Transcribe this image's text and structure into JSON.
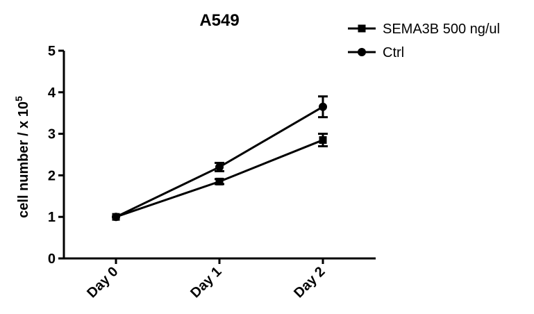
{
  "chart_data": {
    "type": "line",
    "title": "A549",
    "ylabel_main": "cell number / x 10",
    "ylabel_sup": "5",
    "xlabel": "",
    "categories": [
      "Day 0",
      "Day 1",
      "Day 2"
    ],
    "yticks": [
      "0",
      "1",
      "2",
      "3",
      "4",
      "5"
    ],
    "ylim": [
      0,
      5
    ],
    "grid": false,
    "legend_position": "top-right",
    "series": [
      {
        "name": "SEMA3B 500 ng/ul",
        "marker": "square",
        "values": [
          1.0,
          1.85,
          2.85
        ],
        "errors": [
          0.03,
          0.06,
          0.15
        ]
      },
      {
        "name": "Ctrl",
        "marker": "circle",
        "values": [
          1.0,
          2.2,
          3.65
        ],
        "errors": [
          0.03,
          0.1,
          0.25
        ]
      }
    ]
  }
}
